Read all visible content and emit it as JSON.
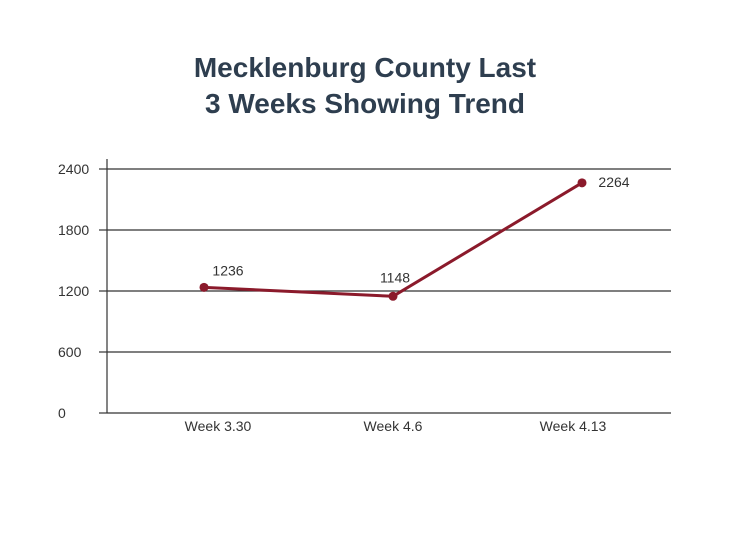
{
  "chart_data": {
    "type": "line",
    "title_lines": [
      "Mecklenburg County Last",
      "3 Weeks Showing Trend"
    ],
    "categories": [
      "Week 3.30",
      "Week 4.6",
      "Week 4.13"
    ],
    "series": [
      {
        "values": [
          1236,
          1148,
          2264
        ],
        "color": "#8b1a2b"
      }
    ],
    "data_labels": [
      "1236",
      "1148",
      "2264"
    ],
    "y_ticks": [
      0,
      600,
      1200,
      1800,
      2400
    ],
    "y_tick_labels": [
      "0",
      "600",
      "1200",
      "1800",
      "2400"
    ],
    "ylim": [
      0,
      2400
    ],
    "grid": true,
    "legend": "none",
    "xlabel": "",
    "ylabel": ""
  }
}
